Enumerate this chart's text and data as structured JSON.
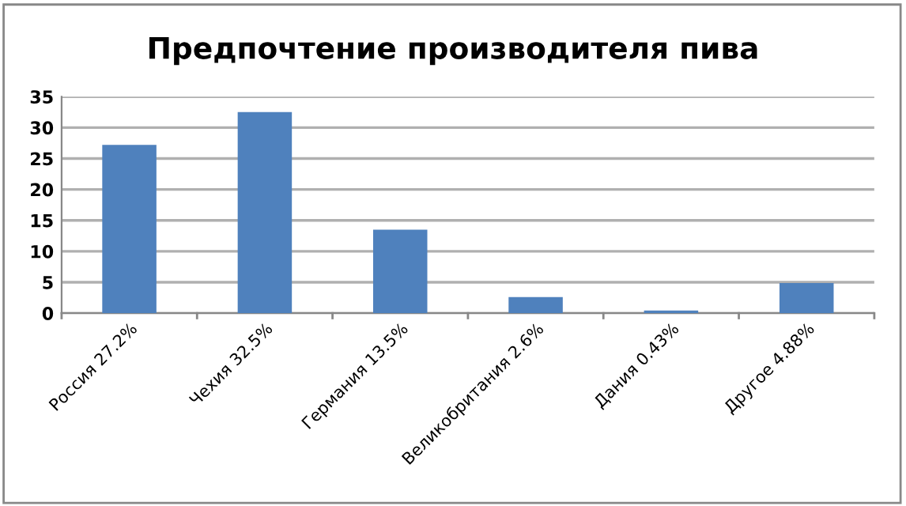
{
  "chart_data": {
    "type": "bar",
    "title": "Предпочтение производителя пива",
    "categories": [
      "Россия 27.2%",
      "Чехия 32.5%",
      "Германия 13.5%",
      "Великобритания 2.6%",
      "Дания 0.43%",
      "Другое 4.88%"
    ],
    "values": [
      27.2,
      32.5,
      13.5,
      2.6,
      0.43,
      4.88
    ],
    "color": "#4f81bd",
    "ylim": [
      0,
      35
    ],
    "yticks": [
      0,
      5,
      10,
      15,
      20,
      25,
      30,
      35
    ],
    "grid": "y",
    "legend": false
  }
}
